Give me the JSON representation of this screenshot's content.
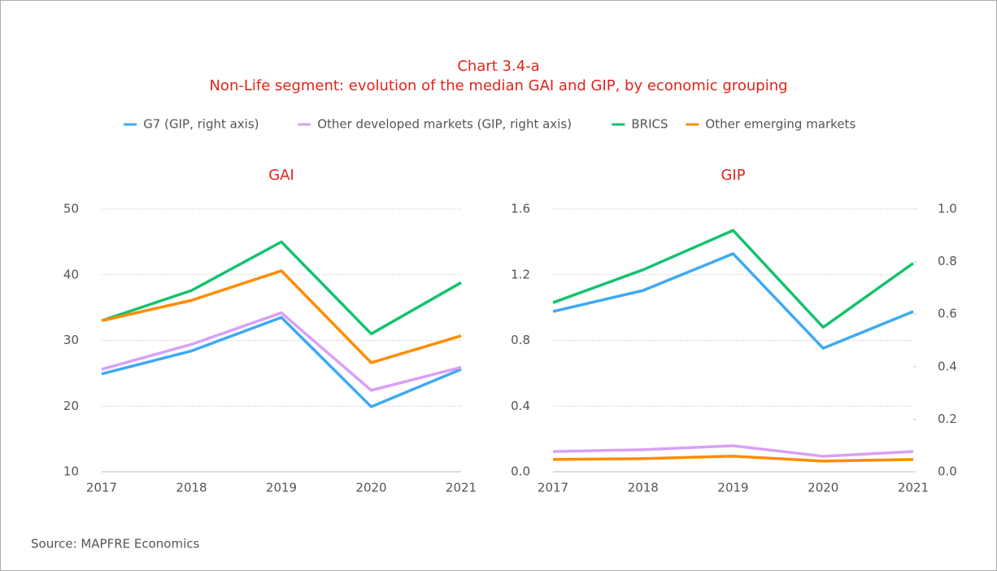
{
  "title": "Chart 3.4-a",
  "subtitle": "Non-Life segment: evolution of the median GAI and GIP, by economic grouping",
  "source": "Source: MAPFRE Economics",
  "chart_data": [
    {
      "type": "line",
      "title": "GAI",
      "categories": [
        "2017",
        "2018",
        "2019",
        "2020",
        "2021"
      ],
      "ylim": [
        10,
        50
      ],
      "yticks": [
        10,
        20,
        30,
        40,
        50
      ],
      "grid": true,
      "series": [
        {
          "color": "#3fa9f5",
          "values": [
            24.9,
            28.4,
            33.5,
            19.9,
            25.6
          ]
        },
        {
          "color": "#d9a0f5",
          "values": [
            25.6,
            29.4,
            34.2,
            22.4,
            25.9
          ]
        },
        {
          "color": "#14c26e",
          "values": [
            33.0,
            37.6,
            45.0,
            31.0,
            38.8
          ]
        },
        {
          "color": "#ff8c00",
          "values": [
            33.0,
            36.1,
            40.6,
            26.6,
            30.7
          ]
        }
      ]
    },
    {
      "type": "line",
      "title": "GIP",
      "categories": [
        "2017",
        "2018",
        "2019",
        "2020",
        "2021"
      ],
      "ylim": [
        0,
        1.6
      ],
      "yticks": [
        {
          "value": 0,
          "label": "0.0"
        },
        0.4,
        0.8,
        1.2,
        1.6
      ],
      "y2lim": [
        0,
        1
      ],
      "y2ticks": [
        {
          "value": 0,
          "label": "0.0"
        },
        0.2,
        0.4,
        0.6,
        0.8,
        {
          "value": 1,
          "label": "1.0"
        }
      ],
      "grid": true,
      "series": [
        {
          "name": "G7 (GIP, right axis)",
          "color": "#3fa9f5",
          "axis": "y2",
          "values": [
            0.61,
            0.69,
            0.83,
            0.47,
            0.61
          ]
        },
        {
          "name": "Other developed markets (GIP, right axis)",
          "color": "#d9a0f5",
          "axis": "y2",
          "values": [
            0.077,
            0.084,
            0.099,
            0.059,
            0.077
          ]
        },
        {
          "name": "BRICS",
          "color": "#14c26e",
          "values": [
            1.03,
            1.23,
            1.47,
            0.88,
            1.27
          ]
        },
        {
          "name": "Other emerging markets",
          "color": "#ff8c00",
          "values": [
            0.075,
            0.08,
            0.095,
            0.065,
            0.075
          ]
        }
      ]
    }
  ]
}
